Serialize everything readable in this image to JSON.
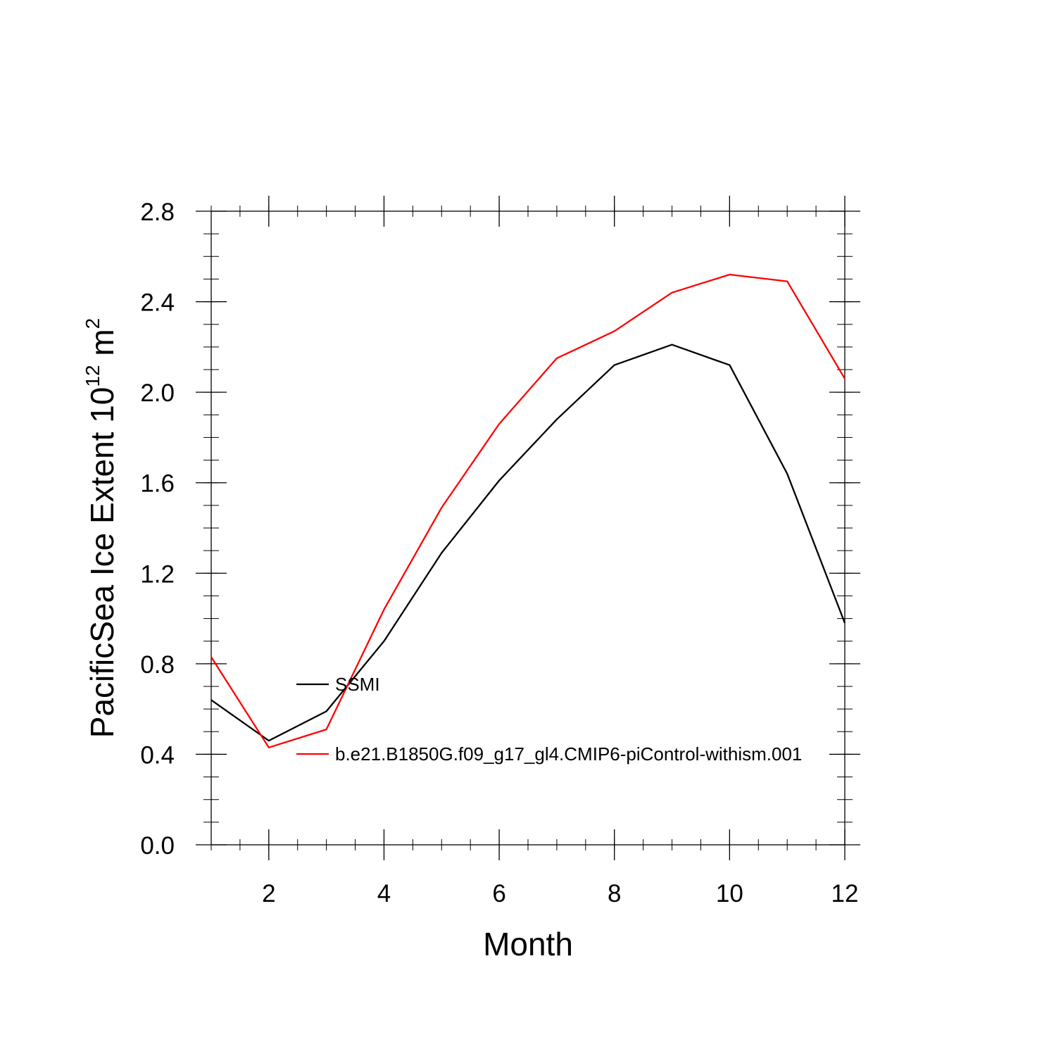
{
  "chart_data": {
    "type": "line",
    "title": "",
    "xlabel": "Month",
    "ylabel": {
      "main": "PacificSea Ice Extent 10",
      "superscript1": "12",
      "unit": " m",
      "superscript2": "2"
    },
    "xlim": [
      1,
      12
    ],
    "ylim": [
      0.0,
      2.8
    ],
    "x_ticks": [
      2,
      4,
      6,
      8,
      10,
      12
    ],
    "x_tick_labels": [
      "2",
      "4",
      "6",
      "8",
      "10",
      "12"
    ],
    "y_ticks": [
      0.0,
      0.4,
      0.8,
      1.2,
      1.6,
      2.0,
      2.4,
      2.8
    ],
    "y_tick_labels": [
      "0.0",
      "0.4",
      "0.8",
      "1.2",
      "1.6",
      "2.0",
      "2.4",
      "2.8"
    ],
    "grid": false,
    "legend_position": "inside-lower-left",
    "x": [
      1,
      2,
      3,
      4,
      5,
      6,
      7,
      8,
      9,
      10,
      11,
      12
    ],
    "series": [
      {
        "name": "SSMI",
        "color": "#000000",
        "values": [
          0.64,
          0.46,
          0.59,
          0.9,
          1.29,
          1.61,
          1.88,
          2.12,
          2.21,
          2.12,
          1.64,
          0.98
        ]
      },
      {
        "name": "b.e21.B1850G.f09_g17_gl4.CMIP6-piControl-withism.001",
        "color": "#ff0000",
        "values": [
          0.83,
          0.43,
          0.51,
          1.04,
          1.49,
          1.86,
          2.15,
          2.27,
          2.44,
          2.52,
          2.49,
          2.06
        ]
      }
    ]
  }
}
